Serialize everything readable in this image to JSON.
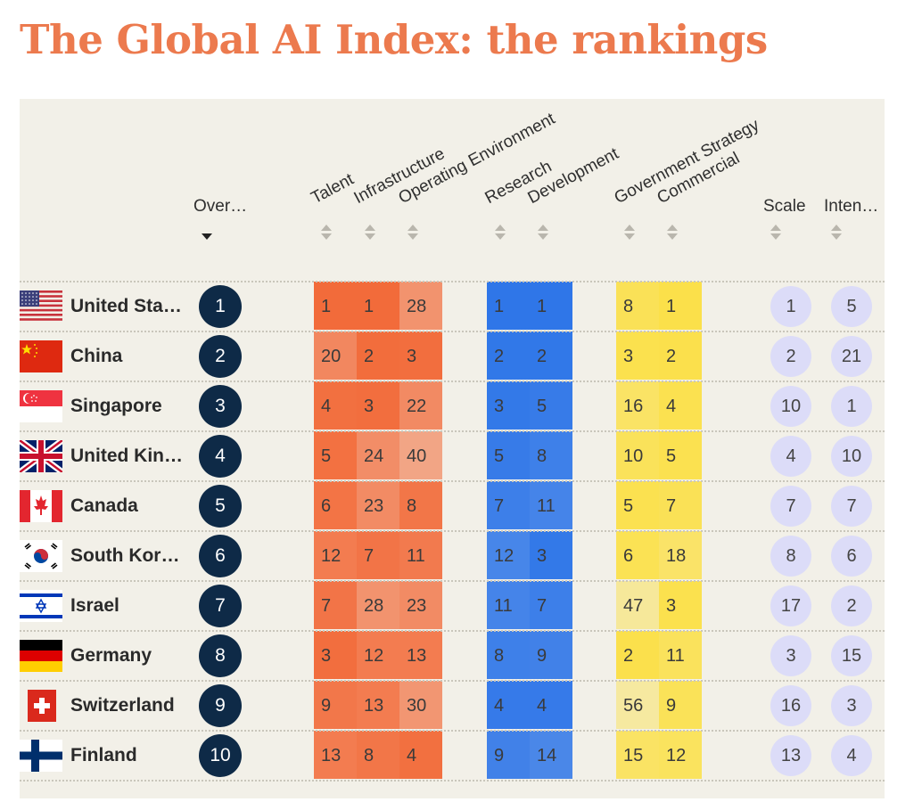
{
  "title": "The Global AI Index: the rankings",
  "colors": {
    "title": "#ec7a4e",
    "overall_circle": "#0e2a47",
    "scale_pill": "#dcdcf8",
    "implementation": "#f26b3a",
    "innovation": "#2f76e8",
    "investment": "#fbe04a"
  },
  "headers": {
    "overall": "Over…",
    "talent": "Talent",
    "infrastructure": "Infrastructure",
    "operating": "Operating Environment",
    "research": "Research",
    "development": "Development",
    "government": "Government Strategy",
    "commercial": "Commercial",
    "scale": "Scale",
    "intensity": "Inten…"
  },
  "chart_data": {
    "type": "table",
    "title": "The Global AI Index: the rankings",
    "sorted_by": "Overall",
    "columns": [
      "Overall",
      "Talent",
      "Infrastructure",
      "Operating Environment",
      "Research",
      "Development",
      "Government Strategy",
      "Commercial",
      "Scale",
      "Intensity"
    ],
    "rows": [
      {
        "country": "United Sta…",
        "flag": "us-flag-icon",
        "overall": 1,
        "talent": 1,
        "infrastructure": 1,
        "operating": 28,
        "research": 1,
        "development": 1,
        "government": 8,
        "commercial": 1,
        "scale": 1,
        "intensity": 5
      },
      {
        "country": "China",
        "flag": "cn-flag-icon",
        "overall": 2,
        "talent": 20,
        "infrastructure": 2,
        "operating": 3,
        "research": 2,
        "development": 2,
        "government": 3,
        "commercial": 2,
        "scale": 2,
        "intensity": 21
      },
      {
        "country": "Singapore",
        "flag": "sg-flag-icon",
        "overall": 3,
        "talent": 4,
        "infrastructure": 3,
        "operating": 22,
        "research": 3,
        "development": 5,
        "government": 16,
        "commercial": 4,
        "scale": 10,
        "intensity": 1
      },
      {
        "country": "United Kin…",
        "flag": "gb-flag-icon",
        "overall": 4,
        "talent": 5,
        "infrastructure": 24,
        "operating": 40,
        "research": 5,
        "development": 8,
        "government": 10,
        "commercial": 5,
        "scale": 4,
        "intensity": 10
      },
      {
        "country": "Canada",
        "flag": "ca-flag-icon",
        "overall": 5,
        "talent": 6,
        "infrastructure": 23,
        "operating": 8,
        "research": 7,
        "development": 11,
        "government": 5,
        "commercial": 7,
        "scale": 7,
        "intensity": 7
      },
      {
        "country": "South Kor…",
        "flag": "kr-flag-icon",
        "overall": 6,
        "talent": 12,
        "infrastructure": 7,
        "operating": 11,
        "research": 12,
        "development": 3,
        "government": 6,
        "commercial": 18,
        "scale": 8,
        "intensity": 6
      },
      {
        "country": "Israel",
        "flag": "il-flag-icon",
        "overall": 7,
        "talent": 7,
        "infrastructure": 28,
        "operating": 23,
        "research": 11,
        "development": 7,
        "government": 47,
        "commercial": 3,
        "scale": 17,
        "intensity": 2
      },
      {
        "country": "Germany",
        "flag": "de-flag-icon",
        "overall": 8,
        "talent": 3,
        "infrastructure": 12,
        "operating": 13,
        "research": 8,
        "development": 9,
        "government": 2,
        "commercial": 11,
        "scale": 3,
        "intensity": 15
      },
      {
        "country": "Switzerland",
        "flag": "ch-flag-icon",
        "overall": 9,
        "talent": 9,
        "infrastructure": 13,
        "operating": 30,
        "research": 4,
        "development": 4,
        "government": 56,
        "commercial": 9,
        "scale": 16,
        "intensity": 3
      },
      {
        "country": "Finland",
        "flag": "fi-flag-icon",
        "overall": 10,
        "talent": 13,
        "infrastructure": 8,
        "operating": 4,
        "research": 9,
        "development": 14,
        "government": 15,
        "commercial": 12,
        "scale": 13,
        "intensity": 4
      }
    ]
  }
}
